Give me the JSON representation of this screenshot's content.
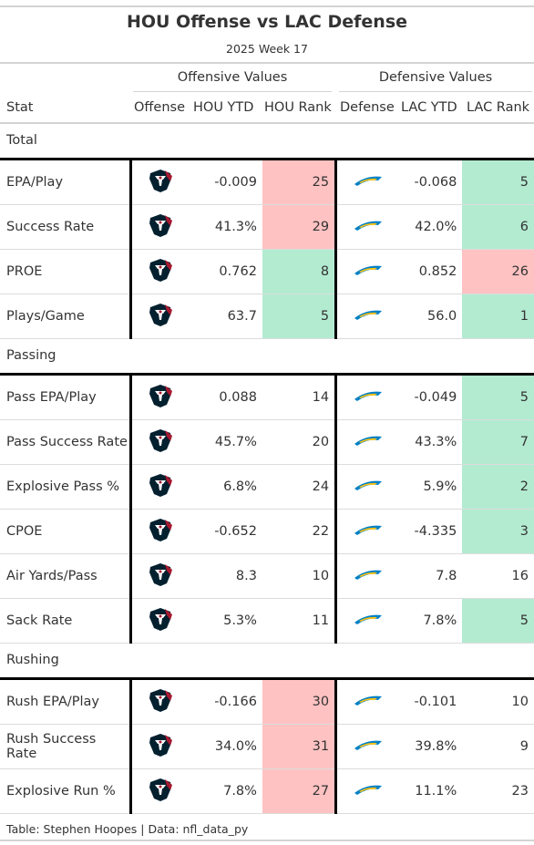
{
  "title": "HOU Offense vs LAC Defense",
  "subtitle": "2025 Week 17",
  "spanners": {
    "offense": "Offensive Values",
    "defense": "Defensive Values"
  },
  "columns": {
    "stat": "Stat",
    "offense": "Offense",
    "hou_ytd": "HOU YTD",
    "hou_rank": "HOU Rank",
    "defense": "Defense",
    "lac_ytd": "LAC YTD",
    "lac_rank": "LAC Rank"
  },
  "logos": {
    "offense": "texans-logo-icon",
    "defense": "chargers-logo-icon"
  },
  "colors": {
    "good": "#b3ebd1",
    "bad": "#ffc2c2",
    "texans_navy": "#03202f",
    "texans_red": "#a71930",
    "chargers_blue": "#0080c6",
    "chargers_gold": "#ffc20e"
  },
  "groups": [
    {
      "name": "Total",
      "rows": [
        {
          "stat": "EPA/Play",
          "hou_ytd": "-0.009",
          "hou_rank": "25",
          "hou_rank_color": "bad",
          "lac_ytd": "-0.068",
          "lac_rank": "5",
          "lac_rank_color": "good"
        },
        {
          "stat": "Success Rate",
          "hou_ytd": "41.3%",
          "hou_rank": "29",
          "hou_rank_color": "bad",
          "lac_ytd": "42.0%",
          "lac_rank": "6",
          "lac_rank_color": "good"
        },
        {
          "stat": "PROE",
          "hou_ytd": "0.762",
          "hou_rank": "8",
          "hou_rank_color": "good",
          "lac_ytd": "0.852",
          "lac_rank": "26",
          "lac_rank_color": "bad"
        },
        {
          "stat": "Plays/Game",
          "hou_ytd": "63.7",
          "hou_rank": "5",
          "hou_rank_color": "good",
          "lac_ytd": "56.0",
          "lac_rank": "1",
          "lac_rank_color": "good"
        }
      ]
    },
    {
      "name": "Passing",
      "rows": [
        {
          "stat": "Pass EPA/Play",
          "hou_ytd": "0.088",
          "hou_rank": "14",
          "hou_rank_color": "none",
          "lac_ytd": "-0.049",
          "lac_rank": "5",
          "lac_rank_color": "good"
        },
        {
          "stat": "Pass Success Rate",
          "hou_ytd": "45.7%",
          "hou_rank": "20",
          "hou_rank_color": "none",
          "lac_ytd": "43.3%",
          "lac_rank": "7",
          "lac_rank_color": "good"
        },
        {
          "stat": "Explosive Pass %",
          "hou_ytd": "6.8%",
          "hou_rank": "24",
          "hou_rank_color": "none",
          "lac_ytd": "5.9%",
          "lac_rank": "2",
          "lac_rank_color": "good"
        },
        {
          "stat": "CPOE",
          "hou_ytd": "-0.652",
          "hou_rank": "22",
          "hou_rank_color": "none",
          "lac_ytd": "-4.335",
          "lac_rank": "3",
          "lac_rank_color": "good"
        },
        {
          "stat": "Air Yards/Pass",
          "hou_ytd": "8.3",
          "hou_rank": "10",
          "hou_rank_color": "none",
          "lac_ytd": "7.8",
          "lac_rank": "16",
          "lac_rank_color": "none"
        },
        {
          "stat": "Sack Rate",
          "hou_ytd": "5.3%",
          "hou_rank": "11",
          "hou_rank_color": "none",
          "lac_ytd": "7.8%",
          "lac_rank": "5",
          "lac_rank_color": "good"
        }
      ]
    },
    {
      "name": "Rushing",
      "rows": [
        {
          "stat": "Rush EPA/Play",
          "hou_ytd": "-0.166",
          "hou_rank": "30",
          "hou_rank_color": "bad",
          "lac_ytd": "-0.101",
          "lac_rank": "10",
          "lac_rank_color": "none"
        },
        {
          "stat": "Rush Success Rate",
          "hou_ytd": "34.0%",
          "hou_rank": "31",
          "hou_rank_color": "bad",
          "lac_ytd": "39.8%",
          "lac_rank": "9",
          "lac_rank_color": "none"
        },
        {
          "stat": "Explosive Run %",
          "hou_ytd": "7.8%",
          "hou_rank": "27",
          "hou_rank_color": "bad",
          "lac_ytd": "11.1%",
          "lac_rank": "23",
          "lac_rank_color": "none"
        }
      ]
    }
  ],
  "footer": "Table: Stephen Hoopes | Data: nfl_data_py"
}
